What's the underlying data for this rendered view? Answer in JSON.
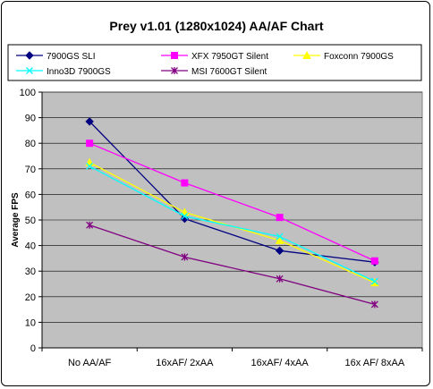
{
  "chart_data": {
    "type": "line",
    "title": "Prey v1.01 (1280x1024) AA/AF Chart",
    "ylabel": "Average FPS",
    "xlabel": "",
    "categories": [
      "No AA/AF",
      "16xAF/ 2xAA",
      "16xAF/ 4xAA",
      "16x AF/ 8xAA"
    ],
    "ylim": [
      0,
      100
    ],
    "yticks": [
      0,
      10,
      20,
      30,
      40,
      50,
      60,
      70,
      80,
      90,
      100
    ],
    "grid": true,
    "plot_background": "#c0c0c0",
    "legend_position": "top",
    "series": [
      {
        "name": "7900GS SLI",
        "color": "#000080",
        "marker": "diamond",
        "values": [
          88.5,
          50.5,
          38,
          33.5
        ]
      },
      {
        "name": "XFX 7950GT Silent",
        "color": "#ff00ff",
        "marker": "square",
        "values": [
          80,
          64.5,
          51,
          34
        ]
      },
      {
        "name": "Foxconn 7900GS",
        "color": "#ffff00",
        "marker": "triangle",
        "values": [
          72.5,
          53,
          42,
          25.5
        ]
      },
      {
        "name": "Inno3D 7900GS",
        "color": "#00ffff",
        "marker": "x",
        "values": [
          71,
          51.5,
          43.5,
          26
        ]
      },
      {
        "name": "MSI 7600GT Silent",
        "color": "#800080",
        "marker": "star",
        "values": [
          48,
          35.5,
          27,
          17
        ]
      }
    ]
  }
}
